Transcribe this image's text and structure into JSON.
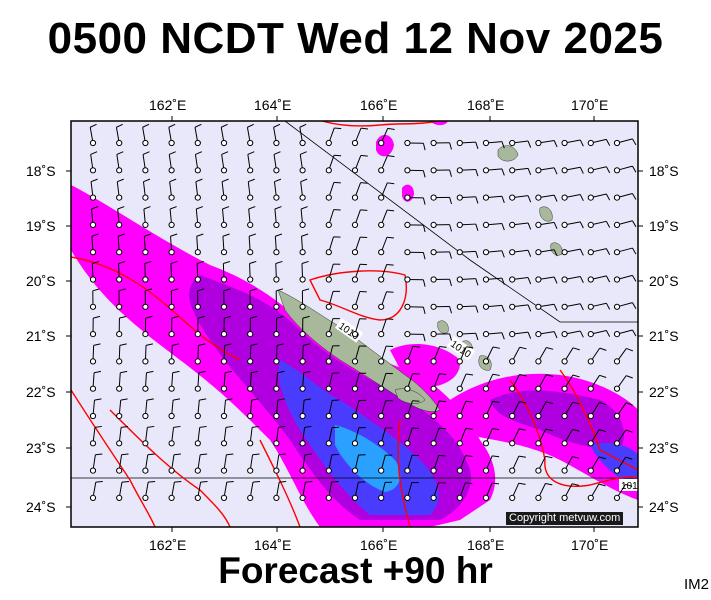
{
  "header": {
    "title": "0500 NCDT Wed 12 Nov 2025"
  },
  "footer": {
    "subtitle": "Forecast +90 hr",
    "image_id": "IM2"
  },
  "map": {
    "copyright": "Copyright metvuw.com",
    "colors": {
      "ocean_background": "#e8e8fa",
      "frame": "#000000",
      "isobar": "#ff0000",
      "land": "#a8b89a",
      "rain_light": "#ff00ff",
      "rain_medium": "#b000e0",
      "rain_heavy": "#4a3cff",
      "rain_heaviest": "#2aa0ff",
      "wind_barb": "#000000"
    },
    "longitude_ticks_top": [
      "162˚E",
      "164˚E",
      "166˚E",
      "168˚E",
      "170˚E"
    ],
    "longitude_ticks_bottom": [
      "162˚E",
      "164˚E",
      "166˚E",
      "168˚E",
      "170˚E"
    ],
    "latitude_ticks_left": [
      "18˚S",
      "19˚S",
      "20˚S",
      "21˚S",
      "22˚S",
      "23˚S",
      "24˚S"
    ],
    "latitude_ticks_right": [
      "18˚S",
      "19˚S",
      "20˚S",
      "21˚S",
      "22˚S",
      "23˚S",
      "24˚S"
    ],
    "isobar_labels": [
      "1010",
      "1010",
      "101"
    ]
  }
}
